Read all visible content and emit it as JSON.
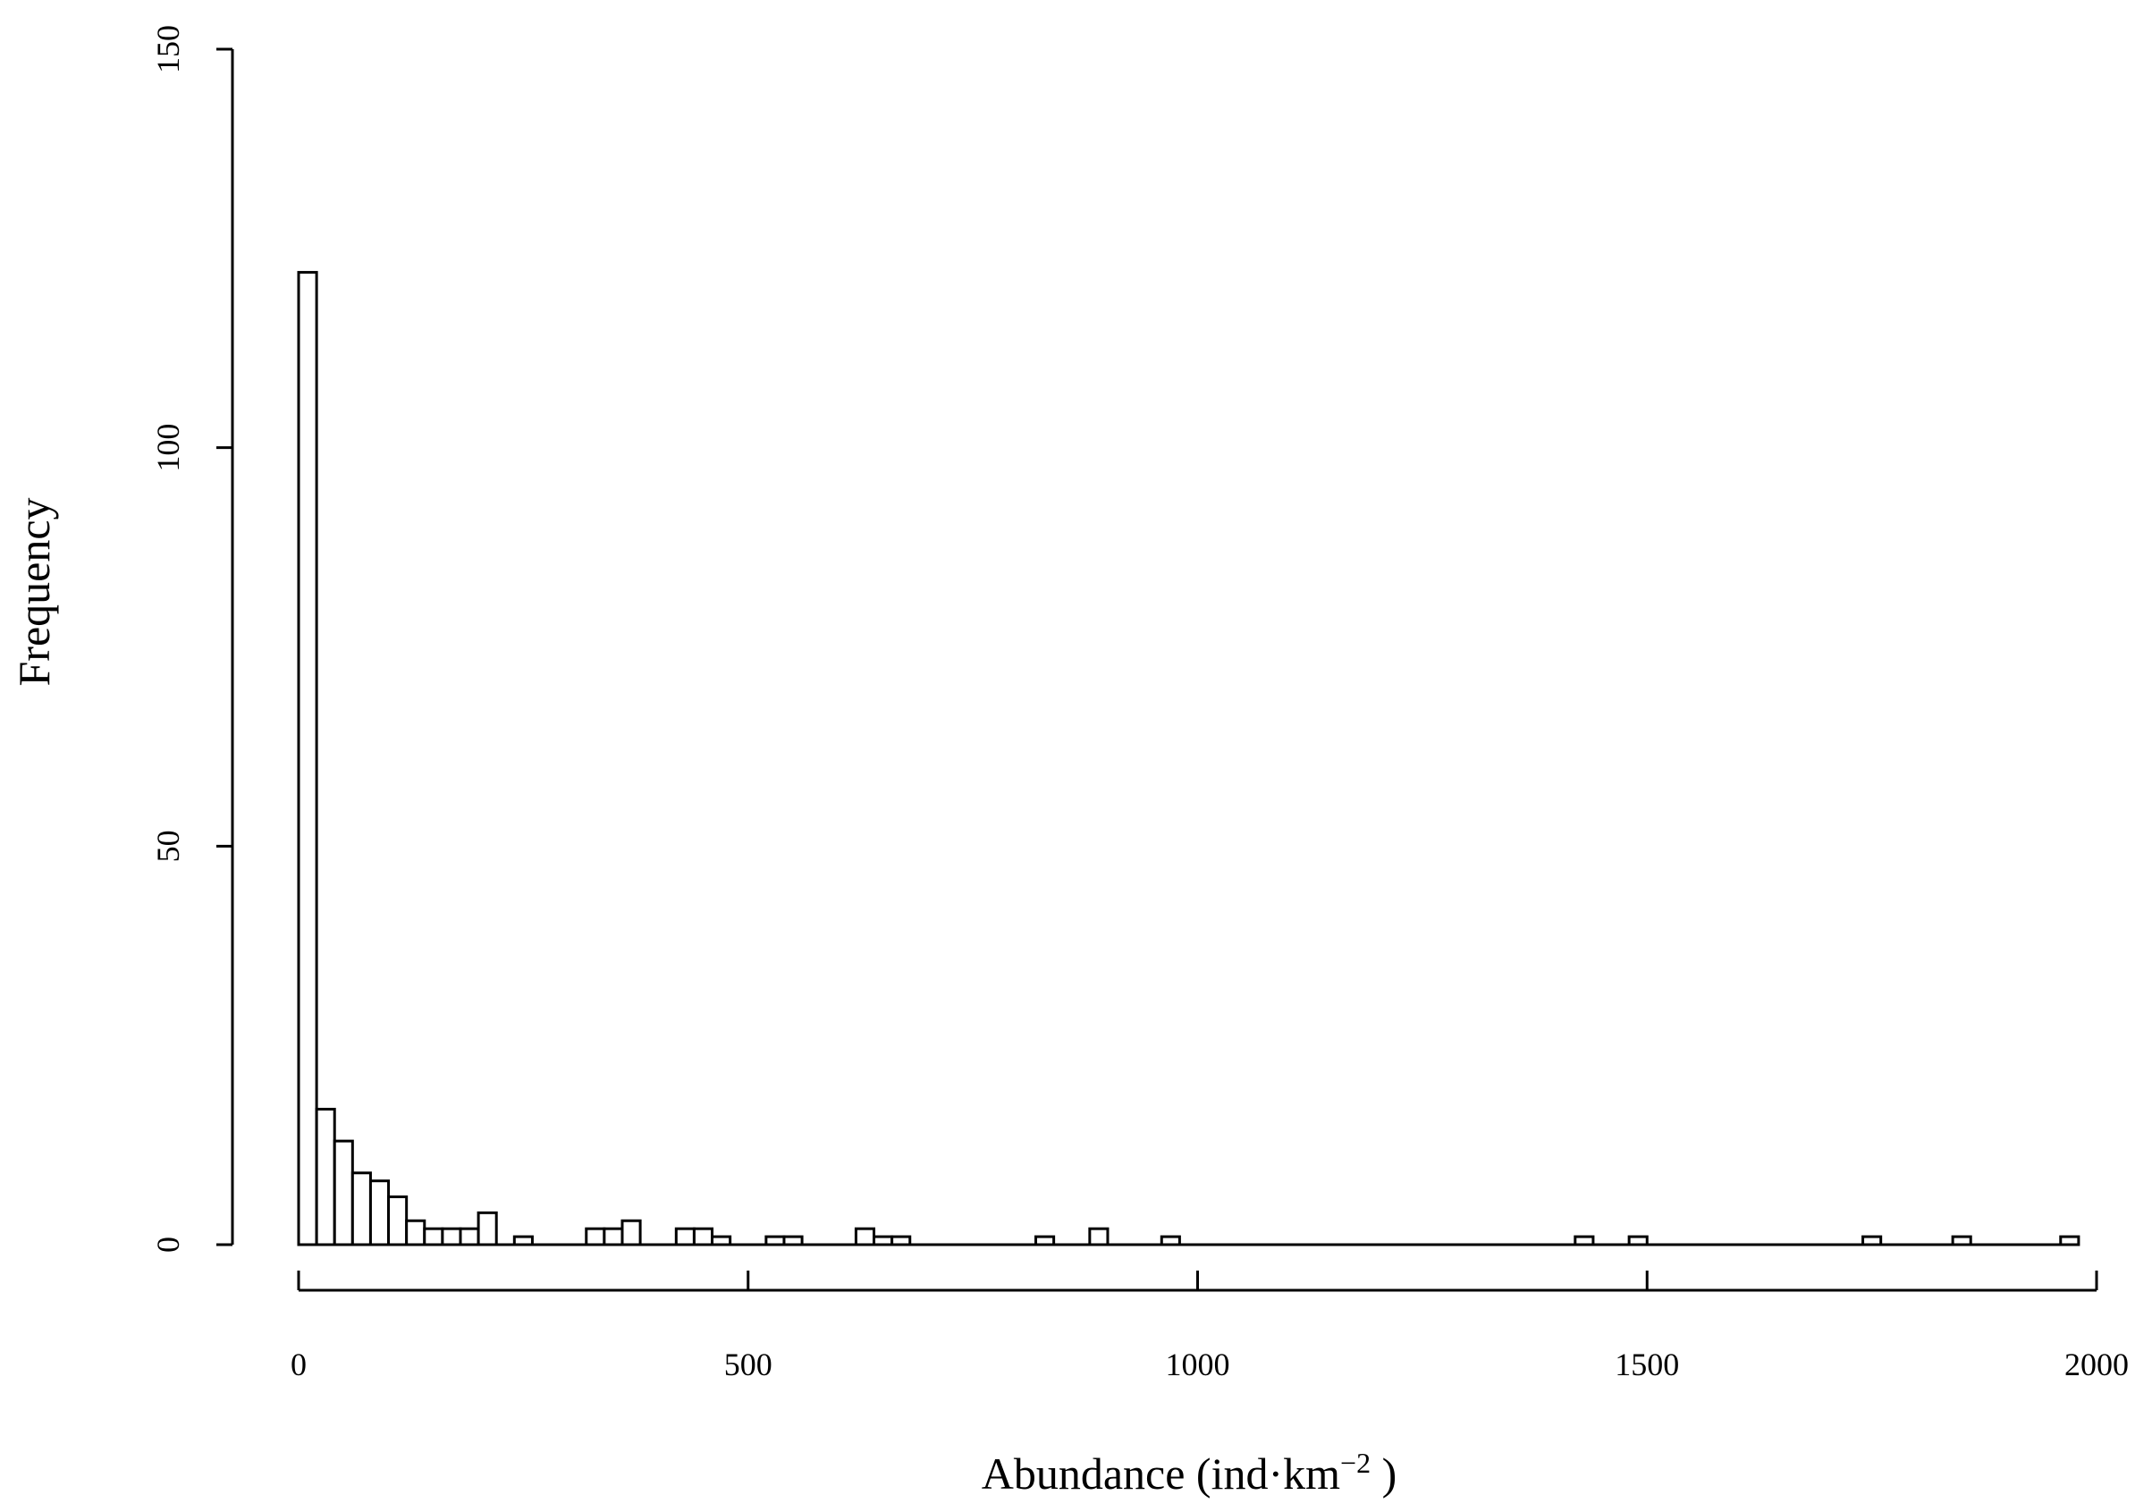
{
  "chart_data": {
    "type": "bar",
    "xlabel": "Abundance (ind·km",
    "xlabel_sup": "−2",
    "xlabel_close": " )",
    "ylabel": "Frequency",
    "xlim": [
      0,
      2000
    ],
    "ylim": [
      0,
      150
    ],
    "x_ticks": [
      0,
      500,
      1000,
      1500,
      2000
    ],
    "y_ticks": [
      0,
      50,
      100,
      150
    ],
    "bin_width": 20,
    "bins": [
      {
        "start": 0,
        "count": 122
      },
      {
        "start": 20,
        "count": 17
      },
      {
        "start": 40,
        "count": 13
      },
      {
        "start": 60,
        "count": 9
      },
      {
        "start": 80,
        "count": 8
      },
      {
        "start": 100,
        "count": 6
      },
      {
        "start": 120,
        "count": 3
      },
      {
        "start": 140,
        "count": 2
      },
      {
        "start": 160,
        "count": 2
      },
      {
        "start": 180,
        "count": 2
      },
      {
        "start": 200,
        "count": 4
      },
      {
        "start": 240,
        "count": 1
      },
      {
        "start": 320,
        "count": 2
      },
      {
        "start": 340,
        "count": 2
      },
      {
        "start": 360,
        "count": 3
      },
      {
        "start": 420,
        "count": 2
      },
      {
        "start": 440,
        "count": 2
      },
      {
        "start": 460,
        "count": 1
      },
      {
        "start": 520,
        "count": 1
      },
      {
        "start": 540,
        "count": 1
      },
      {
        "start": 620,
        "count": 2
      },
      {
        "start": 640,
        "count": 1
      },
      {
        "start": 660,
        "count": 1
      },
      {
        "start": 820,
        "count": 1
      },
      {
        "start": 880,
        "count": 2
      },
      {
        "start": 960,
        "count": 1
      },
      {
        "start": 1420,
        "count": 1
      },
      {
        "start": 1480,
        "count": 1
      },
      {
        "start": 1740,
        "count": 1
      },
      {
        "start": 1840,
        "count": 1
      },
      {
        "start": 1960,
        "count": 1
      }
    ],
    "grid": false,
    "legend": "none"
  }
}
